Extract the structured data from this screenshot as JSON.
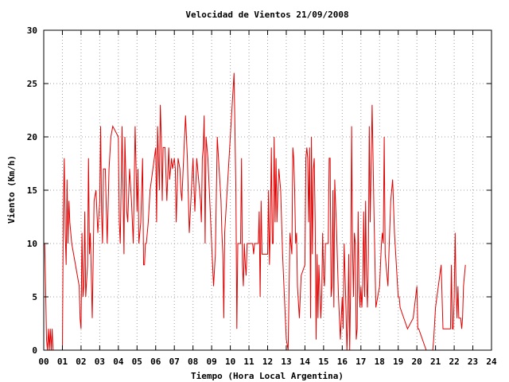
{
  "chart_data": {
    "type": "line",
    "title": "Velocidad de Vientos 21/09/2008",
    "xlabel": "Tiempo (Hora Local Argentina)",
    "ylabel": "Viento (Km/h)",
    "xlim": [
      0,
      24
    ],
    "ylim": [
      0,
      30
    ],
    "grid": true,
    "legend": "none",
    "x_ticks": [
      "00",
      "01",
      "02",
      "03",
      "04",
      "05",
      "06",
      "07",
      "08",
      "09",
      "10",
      "11",
      "12",
      "13",
      "14",
      "15",
      "16",
      "17",
      "18",
      "19",
      "20",
      "21",
      "22",
      "23",
      "24"
    ],
    "y_ticks": [
      "0",
      "5",
      "10",
      "15",
      "20",
      "25",
      "30"
    ],
    "series": [
      {
        "color": "#e00000",
        "x": [
          0.0,
          0.05,
          0.1,
          0.15,
          0.2,
          0.25,
          0.3,
          0.35,
          0.4,
          0.45,
          0.5,
          0.55,
          0.6,
          0.65,
          0.9,
          1.0,
          1.05,
          1.1,
          1.15,
          1.2,
          1.25,
          1.3,
          1.35,
          1.4,
          1.5,
          1.9,
          1.95,
          2.0,
          2.05,
          2.1,
          2.15,
          2.2,
          2.25,
          2.35,
          2.4,
          2.45,
          2.5,
          2.6,
          2.7,
          2.8,
          2.9,
          3.0,
          3.05,
          3.1,
          3.15,
          3.2,
          3.3,
          3.4,
          3.5,
          3.6,
          3.7,
          4.0,
          4.05,
          4.1,
          4.2,
          4.3,
          4.35,
          4.45,
          4.5,
          4.6,
          4.7,
          4.8,
          4.9,
          5.0,
          5.05,
          5.1,
          5.2,
          5.3,
          5.35,
          5.4,
          5.45,
          5.5,
          5.6,
          5.7,
          6.0,
          6.05,
          6.1,
          6.2,
          6.25,
          6.3,
          6.35,
          6.4,
          6.5,
          6.6,
          6.7,
          6.75,
          6.85,
          6.9,
          7.0,
          7.05,
          7.1,
          7.2,
          7.3,
          7.35,
          7.4,
          7.5,
          7.6,
          7.7,
          7.8,
          8.0,
          8.1,
          8.2,
          8.3,
          8.4,
          8.45,
          8.5,
          8.55,
          8.6,
          8.65,
          8.7,
          8.8,
          9.0,
          9.1,
          9.2,
          9.3,
          9.4,
          9.5,
          9.55,
          9.6,
          9.65,
          9.7,
          10.2,
          10.3,
          10.35,
          10.4,
          10.5,
          10.55,
          10.6,
          10.65,
          10.7,
          10.75,
          10.8,
          10.85,
          10.9,
          11.0,
          11.1,
          11.15,
          11.2,
          11.25,
          11.3,
          11.35,
          11.4,
          11.5,
          11.55,
          11.6,
          11.65,
          11.7,
          12.0,
          12.05,
          12.1,
          12.15,
          12.2,
          12.25,
          12.3,
          12.35,
          12.4,
          12.45,
          12.5,
          12.6,
          12.7,
          12.8,
          12.9,
          13.0,
          13.1,
          13.2,
          13.3,
          13.35,
          13.4,
          13.45,
          13.5,
          13.55,
          13.6,
          13.7,
          13.8,
          14.0,
          14.05,
          14.1,
          14.15,
          14.2,
          14.25,
          14.3,
          14.35,
          14.4,
          14.45,
          14.5,
          14.55,
          14.6,
          14.65,
          14.7,
          14.75,
          14.85,
          14.9,
          14.95,
          15.0,
          15.05,
          15.1,
          15.15,
          15.2,
          15.25,
          15.3,
          15.35,
          15.4,
          15.45,
          15.5,
          15.55,
          15.6,
          15.7,
          15.8,
          15.9,
          16.0,
          16.05,
          16.1,
          16.2,
          16.25,
          16.3,
          16.35,
          16.4,
          16.45,
          16.5,
          16.55,
          16.6,
          16.65,
          16.7,
          16.75,
          16.8,
          16.85,
          16.9,
          16.95,
          17.0,
          17.05,
          17.1,
          17.15,
          17.2,
          17.25,
          17.3,
          17.35,
          17.4,
          17.45,
          17.5,
          17.6,
          17.7,
          17.8,
          17.9,
          18.0,
          18.05,
          18.1,
          18.15,
          18.2,
          18.25,
          18.3,
          18.35,
          18.4,
          18.45,
          18.5,
          18.6,
          18.7,
          18.8,
          19.0,
          19.05,
          19.1,
          19.5,
          19.8,
          20.0,
          20.05,
          20.1,
          20.5,
          20.8,
          20.85,
          20.9,
          21.0,
          21.3,
          21.4,
          21.5,
          21.7,
          21.75,
          21.8,
          21.85,
          21.9,
          21.95,
          22.0,
          22.05,
          22.1,
          22.15,
          22.2,
          22.25,
          22.3,
          22.35,
          22.4,
          22.45,
          22.5,
          22.55,
          22.6
        ],
        "y": [
          10,
          10,
          6,
          1,
          0,
          2,
          0,
          2,
          0,
          2,
          0,
          0,
          0,
          0,
          0,
          0,
          13,
          18,
          11,
          8,
          16,
          10,
          14,
          12,
          10,
          6,
          3,
          2,
          11,
          5,
          6,
          13,
          5,
          8,
          18,
          9,
          11,
          3,
          14,
          15,
          11,
          14,
          21,
          13,
          10,
          17,
          17,
          10,
          17,
          20,
          21,
          20,
          12,
          10,
          21,
          9,
          20,
          13,
          12,
          17,
          14,
          10,
          21,
          13,
          17,
          10,
          12,
          18,
          8,
          8,
          10,
          10,
          12,
          15,
          19,
          12,
          21,
          15,
          23,
          20,
          14,
          19,
          19,
          14,
          19,
          16,
          18,
          17,
          18,
          17,
          12,
          18,
          17,
          15,
          14,
          18,
          22,
          18,
          11,
          18,
          13,
          18,
          16,
          14,
          12,
          18,
          19,
          22,
          10,
          20,
          18,
          10,
          6,
          9,
          20,
          17,
          14,
          11,
          9,
          3,
          11,
          26,
          15,
          2,
          10,
          10,
          10,
          18,
          8,
          6,
          10,
          8,
          7,
          10,
          10,
          10,
          10,
          10,
          9,
          10,
          10,
          10,
          10,
          13,
          5,
          14,
          9,
          9,
          15,
          8,
          12,
          19,
          10,
          10,
          20,
          12,
          18,
          12,
          17,
          15,
          9,
          5,
          1,
          0,
          11,
          9,
          19,
          18,
          15,
          10,
          11,
          6,
          3,
          7,
          8,
          18,
          19,
          18,
          12,
          19,
          3,
          20,
          9,
          17,
          18,
          12,
          1,
          9,
          3,
          8,
          3,
          5,
          11,
          7,
          6,
          10,
          10,
          10,
          10,
          18,
          18,
          5,
          6,
          15,
          4,
          16,
          11,
          5,
          1,
          5,
          2,
          10,
          4,
          0,
          3,
          9,
          0,
          6,
          21,
          10,
          5,
          11,
          10,
          1,
          2,
          13,
          6,
          4,
          6,
          4,
          6,
          13,
          5,
          14,
          7,
          4,
          9,
          21,
          12,
          23,
          13,
          4,
          5,
          6,
          8,
          10,
          11,
          10,
          20,
          9,
          8,
          7,
          6,
          9,
          14,
          16,
          11,
          5,
          5,
          4,
          2,
          3,
          6,
          2,
          2,
          0,
          0,
          0,
          1,
          4,
          8,
          2,
          2,
          2,
          2,
          2,
          8,
          2,
          2,
          5,
          11,
          6,
          3,
          6,
          3,
          3,
          3,
          2,
          3,
          6,
          7,
          8
        ]
      }
    ]
  }
}
